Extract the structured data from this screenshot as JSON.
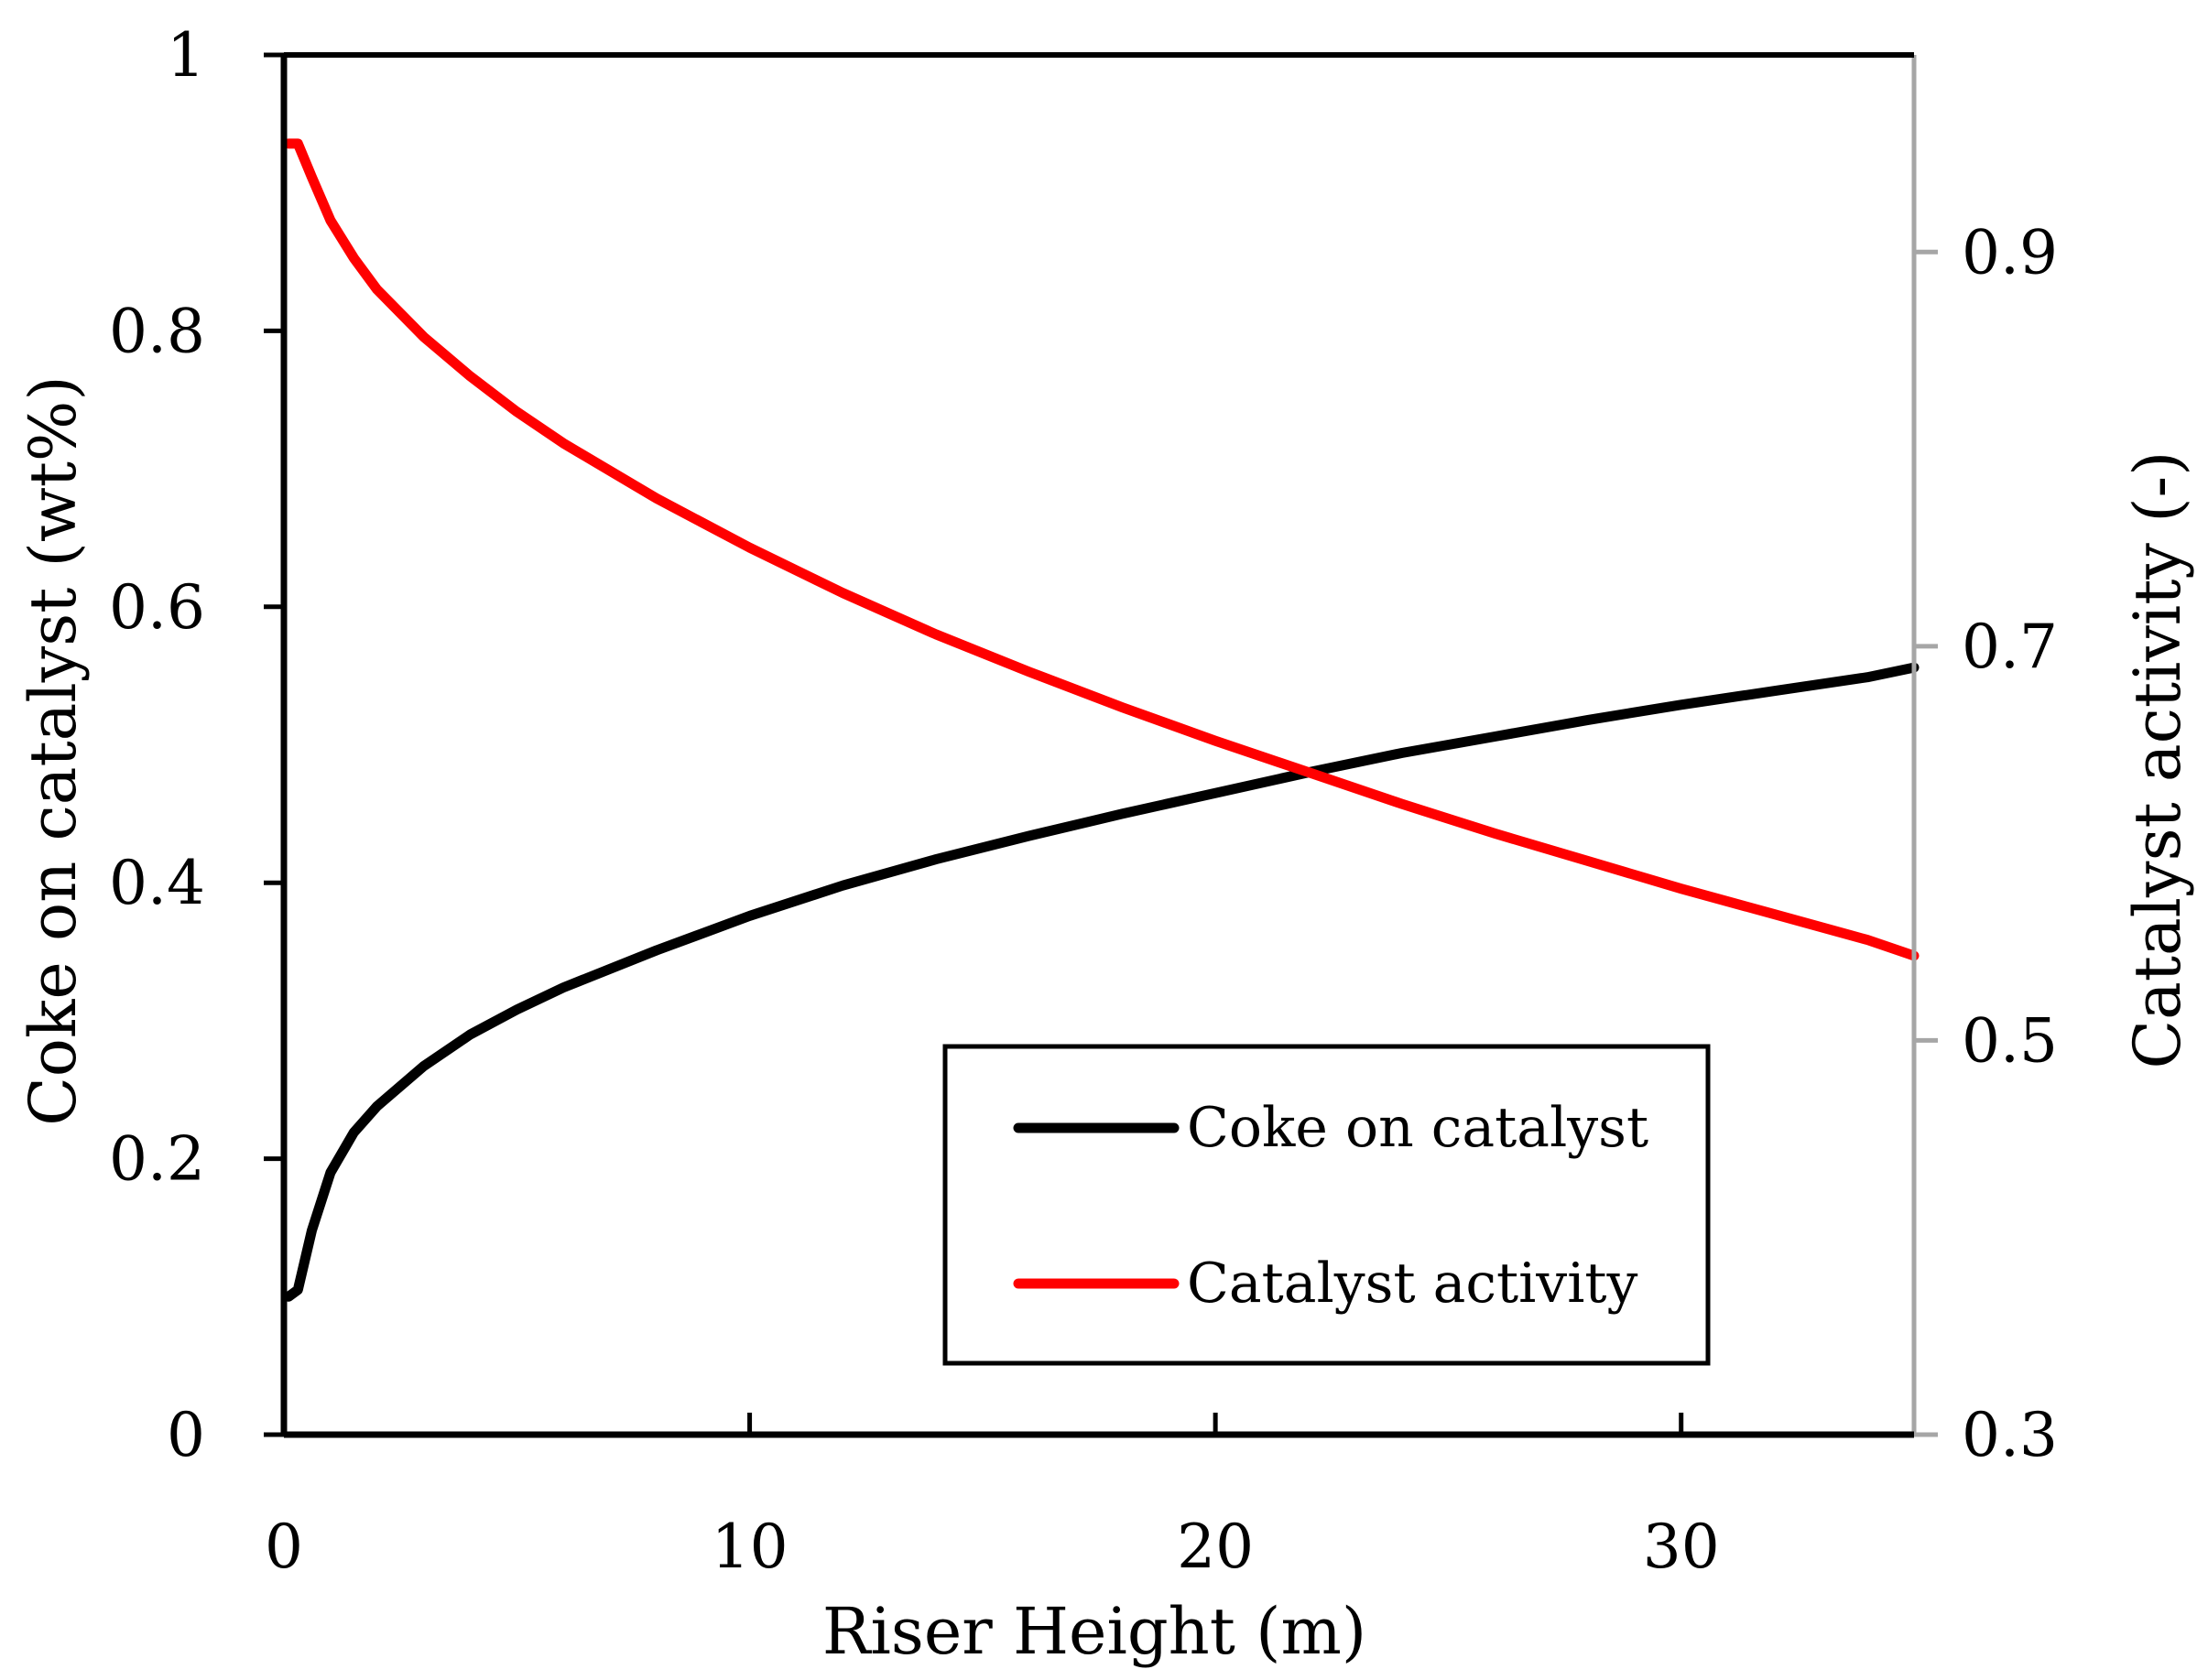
{
  "chart_data": {
    "type": "line",
    "title": "",
    "xlabel": "Riser Height (m)",
    "ylabel": "Coke on catalyst (wt%)",
    "y2label": "Catalyst activity (-)",
    "xlim": [
      0,
      35
    ],
    "ylim": [
      0,
      1
    ],
    "y2lim": [
      0.3,
      1.0
    ],
    "xticks": [
      0,
      10,
      20,
      30
    ],
    "xtick_labels": [
      "0",
      "10",
      "20",
      "30"
    ],
    "yticks": [
      0,
      0.2,
      0.4,
      0.6,
      0.8,
      1
    ],
    "ytick_labels": [
      "0",
      "0.2",
      "0.4",
      "0.6",
      "0.8",
      "1"
    ],
    "y2ticks": [
      0.3,
      0.5,
      0.7,
      0.9
    ],
    "y2tick_labels": [
      "0.3",
      "0.5",
      "0.7",
      "0.9"
    ],
    "grid": false,
    "legend_position": "bottom-right",
    "series": [
      {
        "name": "Coke on catalyst",
        "axis": "left",
        "color": "#000000",
        "x": [
          0.1,
          0.3,
          0.6,
          1,
          1.5,
          2,
          3,
          4,
          5,
          6,
          8,
          10,
          12,
          14,
          16,
          18,
          20,
          22,
          24,
          26,
          28,
          30,
          32,
          34,
          35
        ],
        "y": [
          0.1,
          0.105,
          0.148,
          0.19,
          0.219,
          0.238,
          0.267,
          0.29,
          0.308,
          0.324,
          0.351,
          0.376,
          0.398,
          0.417,
          0.434,
          0.45,
          0.465,
          0.48,
          0.494,
          0.506,
          0.518,
          0.529,
          0.539,
          0.549,
          0.556
        ]
      },
      {
        "name": "Catalyst activity",
        "axis": "right",
        "color": "#ff0000",
        "x": [
          0.1,
          0.3,
          0.6,
          1,
          1.5,
          2,
          3,
          4,
          5,
          6,
          8,
          10,
          12,
          14,
          16,
          18,
          20,
          22,
          24,
          26,
          28,
          30,
          32,
          34,
          35
        ],
        "y": [
          0.955,
          0.955,
          0.938,
          0.916,
          0.897,
          0.881,
          0.857,
          0.837,
          0.819,
          0.803,
          0.775,
          0.75,
          0.727,
          0.706,
          0.687,
          0.669,
          0.652,
          0.636,
          0.62,
          0.605,
          0.591,
          0.577,
          0.564,
          0.551,
          0.543
        ]
      }
    ]
  }
}
